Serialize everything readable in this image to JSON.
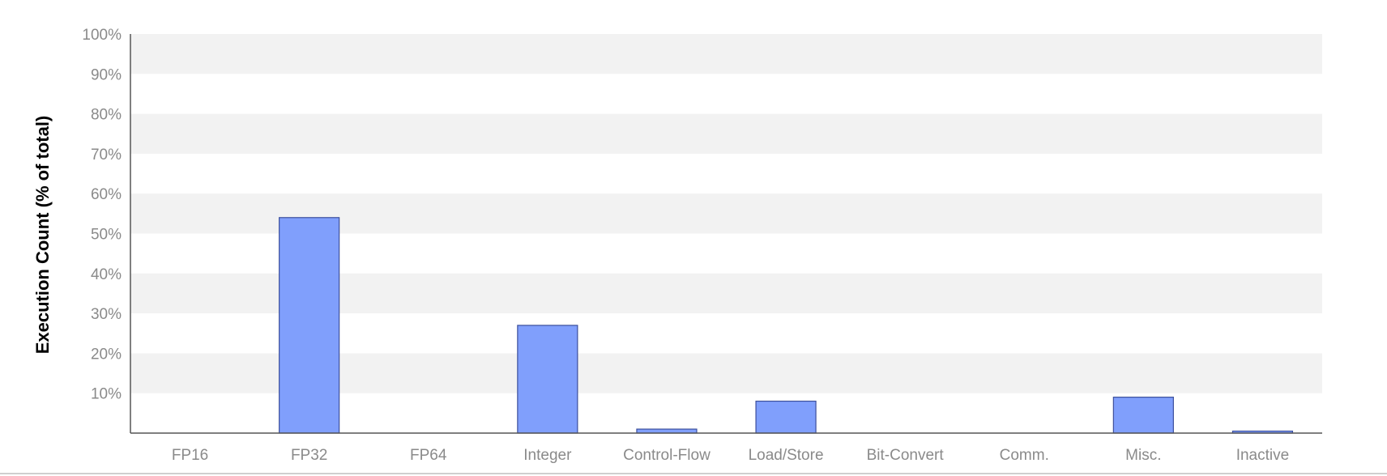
{
  "chart_data": {
    "type": "bar",
    "title": "",
    "xlabel": "",
    "ylabel": "Execution Count (% of total)",
    "categories": [
      "FP16",
      "FP32",
      "FP64",
      "Integer",
      "Control-Flow",
      "Load/Store",
      "Bit-Convert",
      "Comm.",
      "Misc.",
      "Inactive"
    ],
    "values": [
      0,
      54,
      0,
      27,
      1,
      8,
      0,
      0,
      9,
      0.5
    ],
    "ylim": [
      0,
      100
    ],
    "yticks": [
      "10%",
      "20%",
      "30%",
      "40%",
      "50%",
      "60%",
      "70%",
      "80%",
      "90%",
      "100%"
    ],
    "ytick_values": [
      10,
      20,
      30,
      40,
      50,
      60,
      70,
      80,
      90,
      100
    ],
    "grid": "alternating horizontal bands",
    "legend": "none",
    "bar_color": "#809ffc",
    "bar_edge_color": "#3c4f9c",
    "band_color": "#f2f2f2",
    "axis_color": "#555555",
    "tick_label_color": "#8a8a8a",
    "ylabel_color": "#000000"
  }
}
